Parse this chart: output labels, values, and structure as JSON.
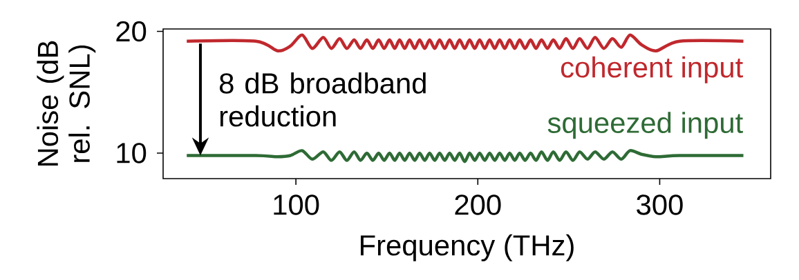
{
  "chart_data": {
    "type": "line",
    "xlabel": "Frequency (THz)",
    "ylabel": "Noise (dB rel. SNL)",
    "annotations": [
      {
        "text": "8 dB broadband reduction",
        "x": 47.5,
        "y": 9.8
      }
    ],
    "xlim": [
      27,
      361
    ],
    "ylim": [
      7.9,
      20.2
    ],
    "xticks": [
      100,
      200,
      300
    ],
    "yticks": [
      10,
      20
    ],
    "x": [
      40,
      78,
      90,
      97,
      103.4,
      109,
      115,
      119.5,
      124,
      128,
      132,
      135.5,
      139,
      142.3,
      145.5,
      148.5,
      151.5,
      154.3,
      157,
      159.8,
      162.5,
      165.3,
      168,
      170.8,
      173.5,
      176.3,
      179,
      181.8,
      184.5,
      187.3,
      190,
      192.8,
      195.5,
      198.3,
      201,
      203.8,
      206.5,
      209.3,
      212,
      214.8,
      217.5,
      220.3,
      223,
      226,
      229,
      232,
      235,
      238.3,
      241.5,
      245,
      248.5,
      252.3,
      256,
      260.3,
      264.5,
      269.3,
      274,
      278.9,
      283.7,
      290,
      298,
      311,
      346
    ],
    "series": [
      {
        "name": "coherent input",
        "color": "#c0282d",
        "values": [
          19.2,
          19.2,
          18.4,
          18.8,
          19.7,
          18.6,
          19.5,
          18.6,
          19.4,
          18.6,
          19.3,
          18.6,
          19.3,
          18.6,
          19.3,
          18.6,
          19.3,
          18.6,
          19.3,
          18.6,
          19.3,
          18.6,
          19.3,
          18.6,
          19.3,
          18.6,
          19.3,
          18.6,
          19.3,
          18.6,
          19.3,
          18.6,
          19.3,
          18.6,
          19.3,
          18.6,
          19.3,
          18.6,
          19.3,
          18.6,
          19.3,
          18.6,
          19.3,
          18.6,
          19.3,
          18.6,
          19.3,
          18.6,
          19.3,
          18.6,
          19.4,
          18.6,
          19.4,
          18.6,
          19.5,
          18.6,
          19.4,
          18.7,
          19.7,
          18.9,
          18.4,
          19.2,
          19.2
        ]
      },
      {
        "name": "squeezed input",
        "color": "#2e6b35",
        "values": [
          9.8,
          9.8,
          9.7,
          9.8,
          10.2,
          9.5,
          10.1,
          9.4,
          10.1,
          9.4,
          10.1,
          9.4,
          10.0,
          9.4,
          10.0,
          9.4,
          10.0,
          9.4,
          10.0,
          9.4,
          10.0,
          9.4,
          10.0,
          9.4,
          10.0,
          9.4,
          10.0,
          9.4,
          10.0,
          9.4,
          10.0,
          9.3,
          10.0,
          9.4,
          10.0,
          9.4,
          10.0,
          9.4,
          10.0,
          9.4,
          10.0,
          9.4,
          10.0,
          9.4,
          10.0,
          9.4,
          10.1,
          9.4,
          10.1,
          9.4,
          10.1,
          9.4,
          10.1,
          9.5,
          10.1,
          9.5,
          10.1,
          9.5,
          10.2,
          9.9,
          9.7,
          9.8,
          9.8
        ]
      }
    ]
  }
}
